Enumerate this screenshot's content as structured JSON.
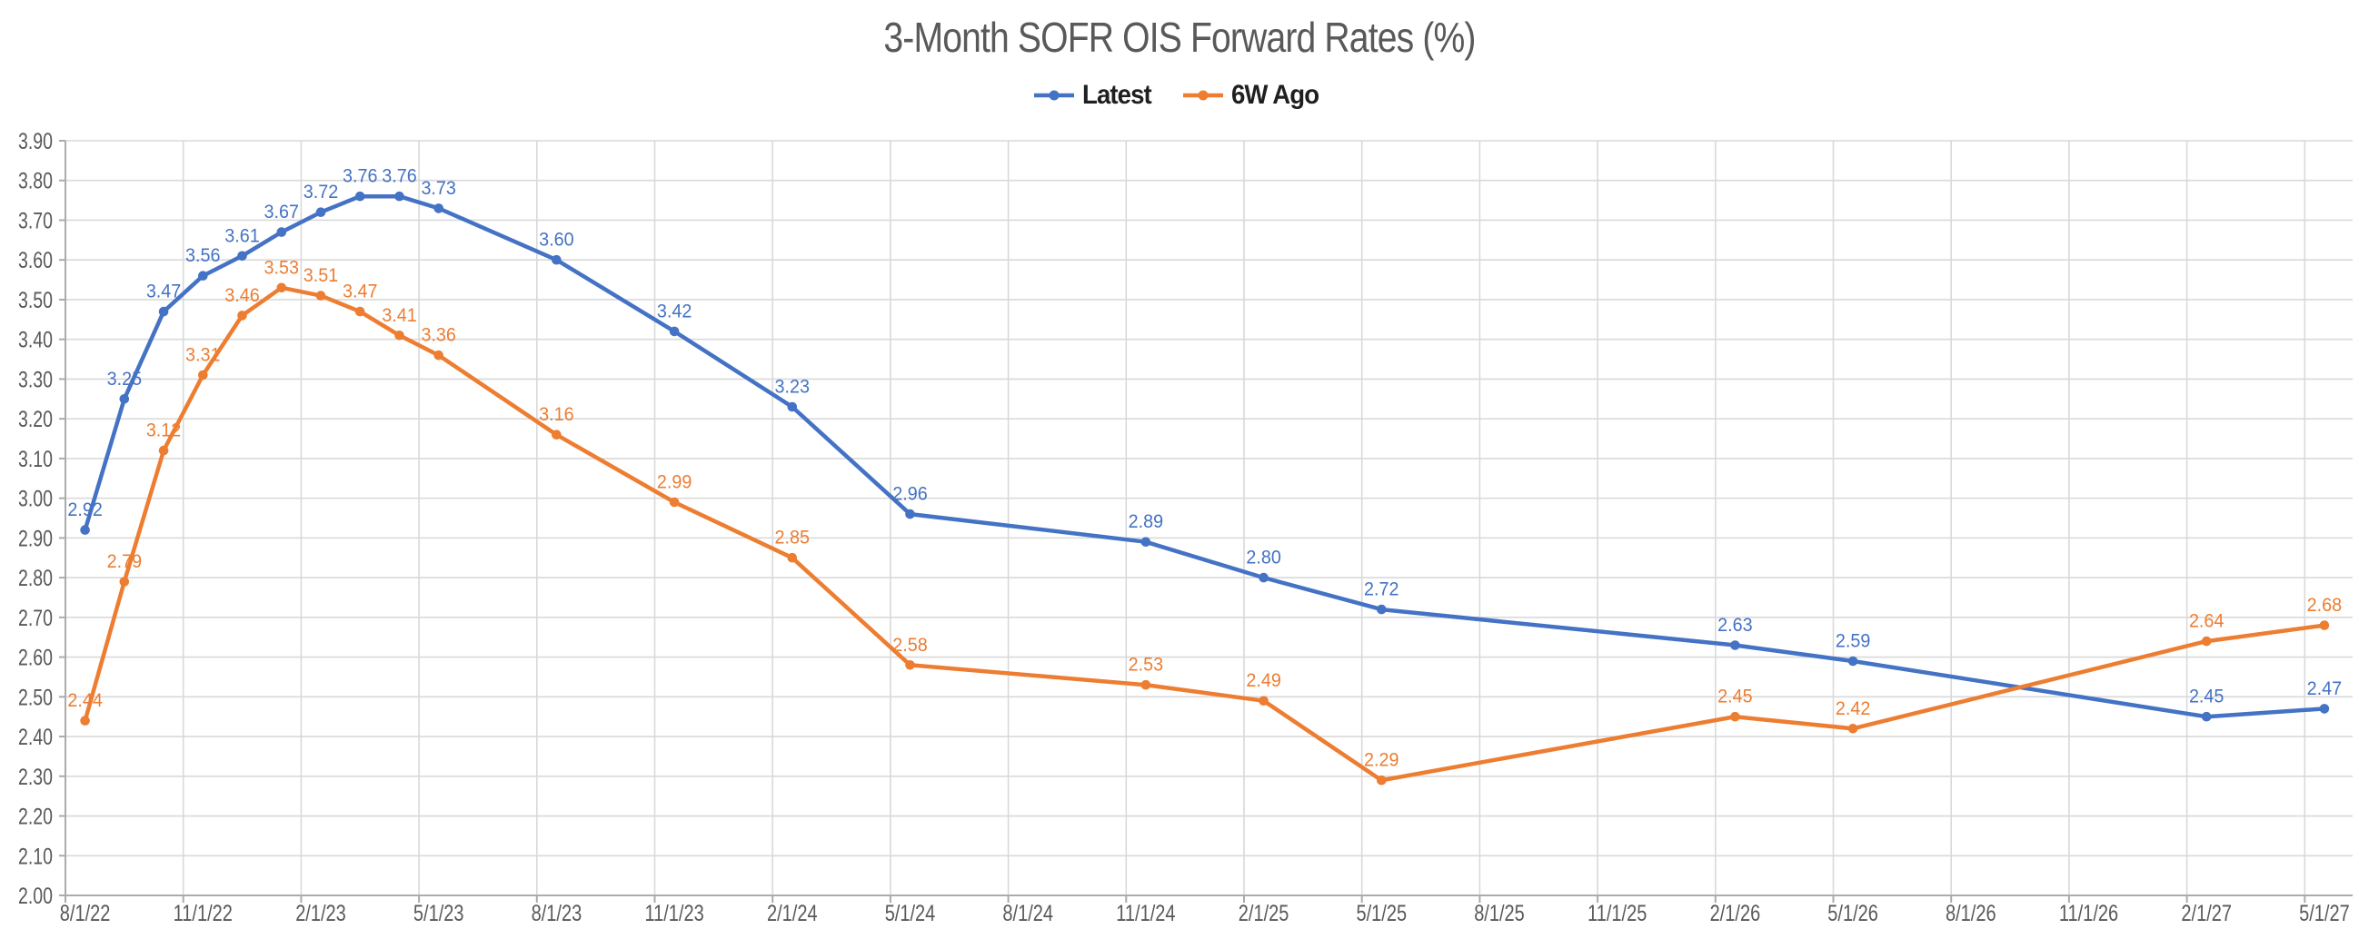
{
  "styles": {
    "latest_color": "#4472C4",
    "six_w_ago_color": "#ED7D31",
    "gridline_color": "#D9D9D9",
    "axis_line_color": "#ABABAB",
    "axis_text_color": "#595959",
    "title_color": "#595959",
    "legend_text_color": "#1F1F1F",
    "background": "#FFFFFF"
  },
  "chart_data": {
    "type": "line",
    "title": "3-Month SOFR OIS Forward Rates (%)",
    "legend_position": "top-center",
    "grid": true,
    "x_axis": {
      "tick_labels": [
        "8/1/22",
        "11/1/22",
        "2/1/23",
        "5/1/23",
        "8/1/23",
        "11/1/23",
        "2/1/24",
        "5/1/24",
        "8/1/24",
        "11/1/24",
        "2/1/25",
        "5/1/25",
        "8/1/25",
        "11/1/25",
        "2/1/26",
        "5/1/26",
        "8/1/26",
        "11/1/26",
        "2/1/27",
        "5/1/27"
      ]
    },
    "y_axis": {
      "min": 2.0,
      "max": 3.9,
      "step": 0.1,
      "tick_labels": [
        "2.00",
        "2.10",
        "2.20",
        "2.30",
        "2.40",
        "2.50",
        "2.60",
        "2.70",
        "2.80",
        "2.90",
        "3.00",
        "3.10",
        "3.20",
        "3.30",
        "3.40",
        "3.50",
        "3.60",
        "3.70",
        "3.80",
        "3.90"
      ]
    },
    "x": {
      "dates": [
        "8/1/22",
        "9/1/22",
        "10/1/22",
        "11/1/22",
        "12/1/22",
        "1/1/23",
        "2/1/23",
        "3/1/23",
        "4/1/23",
        "5/1/23",
        "8/1/23",
        "11/1/23",
        "2/1/24",
        "5/1/24",
        "11/1/24",
        "2/1/25",
        "5/1/25",
        "2/1/26",
        "5/1/26",
        "2/1/27",
        "5/1/27"
      ],
      "month_offset": [
        0,
        1,
        2,
        3,
        4,
        5,
        6,
        7,
        8,
        9,
        12,
        15,
        18,
        21,
        27,
        30,
        33,
        42,
        45,
        54,
        57
      ]
    },
    "series": [
      {
        "name": "Latest",
        "color": "#4472C4",
        "values": [
          2.92,
          3.25,
          3.47,
          3.56,
          3.61,
          3.67,
          3.72,
          3.76,
          3.76,
          3.73,
          3.6,
          3.42,
          3.23,
          2.96,
          2.89,
          2.8,
          2.72,
          2.63,
          2.59,
          2.45,
          2.47
        ]
      },
      {
        "name": "6W Ago",
        "color": "#ED7D31",
        "values": [
          2.44,
          2.79,
          3.12,
          3.31,
          3.46,
          3.53,
          3.51,
          3.47,
          3.41,
          3.36,
          3.16,
          2.99,
          2.85,
          2.58,
          2.53,
          2.49,
          2.29,
          2.45,
          2.42,
          2.64,
          2.68
        ]
      }
    ]
  }
}
